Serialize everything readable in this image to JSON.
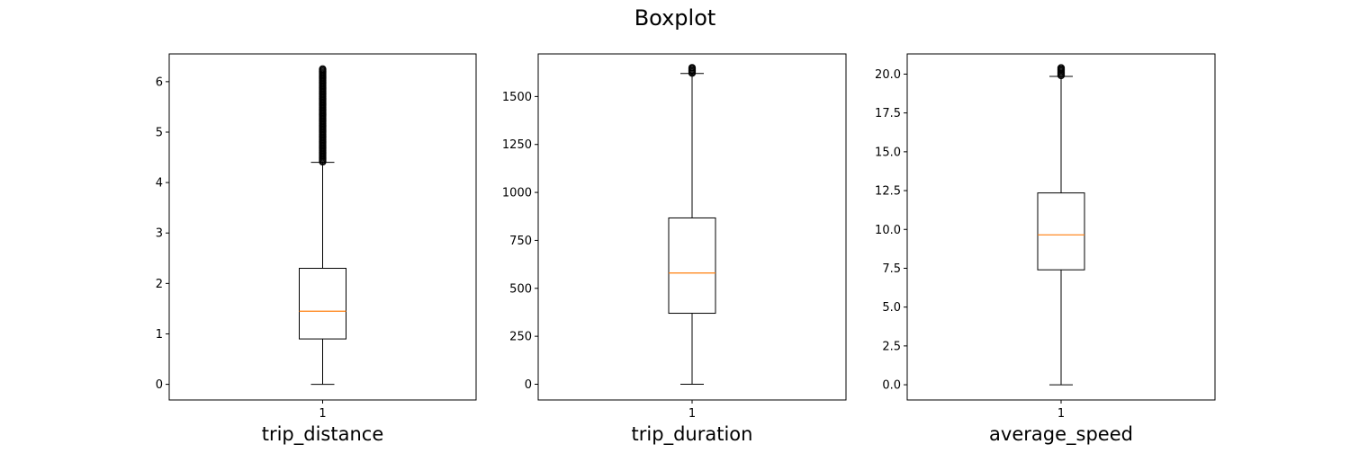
{
  "figure": {
    "title": "Boxplot"
  },
  "chart_data": [
    {
      "type": "box",
      "xlabel": "trip_distance",
      "categories": [
        "1"
      ],
      "ylim": [
        -0.31,
        6.55
      ],
      "yticks": [
        0,
        1,
        2,
        3,
        4,
        5,
        6
      ],
      "ytick_labels": [
        "0",
        "1",
        "2",
        "3",
        "4",
        "5",
        "6"
      ],
      "box": {
        "whisker_low": 0.0,
        "q1": 0.9,
        "median": 1.45,
        "q3": 2.3,
        "whisker_high": 4.4
      },
      "outliers_range": [
        4.4,
        6.25
      ],
      "colors": {
        "box": "#000000",
        "median": "#ff7f0e"
      }
    },
    {
      "type": "box",
      "xlabel": "trip_duration",
      "categories": [
        "1"
      ],
      "ylim": [
        -82,
        1722
      ],
      "yticks": [
        0,
        250,
        500,
        750,
        1000,
        1250,
        1500
      ],
      "ytick_labels": [
        "0",
        "250",
        "500",
        "750",
        "1000",
        "1250",
        "1500"
      ],
      "box": {
        "whisker_low": 0,
        "q1": 370,
        "median": 580,
        "q3": 867,
        "whisker_high": 1620
      },
      "outliers_range": [
        1620,
        1650
      ],
      "colors": {
        "box": "#000000",
        "median": "#ff7f0e"
      }
    },
    {
      "type": "box",
      "xlabel": "average_speed",
      "categories": [
        "1"
      ],
      "ylim": [
        -0.98,
        21.3
      ],
      "yticks": [
        0.0,
        2.5,
        5.0,
        7.5,
        10.0,
        12.5,
        15.0,
        17.5,
        20.0
      ],
      "ytick_labels": [
        "0.0",
        "2.5",
        "5.0",
        "7.5",
        "10.0",
        "12.5",
        "15.0",
        "17.5",
        "20.0"
      ],
      "box": {
        "whisker_low": 0.0,
        "q1": 7.4,
        "median": 9.65,
        "q3": 12.35,
        "whisker_high": 19.85
      },
      "outliers_range": [
        19.85,
        20.4
      ],
      "colors": {
        "box": "#000000",
        "median": "#ff7f0e"
      }
    }
  ]
}
